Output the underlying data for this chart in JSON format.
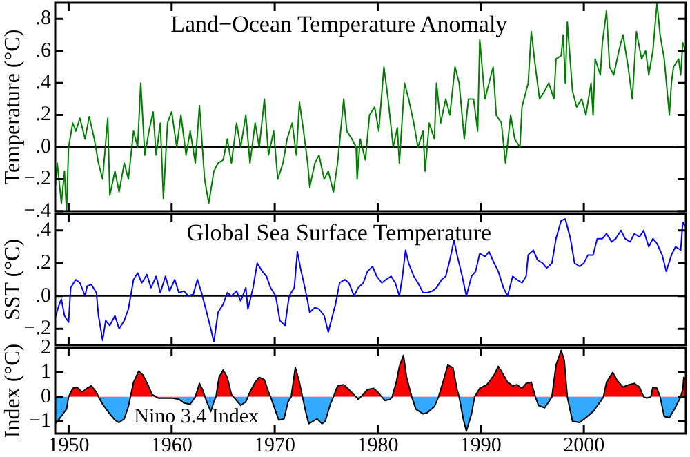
{
  "chart_data": [
    {
      "type": "line",
      "title": "Land−Ocean Temperature Anomaly",
      "ylabel": "Temperature (°C)",
      "color": "#008000",
      "x": [
        1948.7,
        1948.9,
        1949.3,
        1949.6,
        1949.8,
        1950.0,
        1950.4,
        1950.7,
        1951.1,
        1951.6,
        1952.0,
        1952.5,
        1952.9,
        1953.3,
        1953.8,
        1954.0,
        1954.5,
        1954.9,
        1955.4,
        1955.8,
        1956.3,
        1956.7,
        1957.0,
        1957.4,
        1957.8,
        1958.2,
        1958.5,
        1958.9,
        1959.2,
        1959.6,
        1960.0,
        1960.5,
        1960.9,
        1961.4,
        1961.8,
        1962.3,
        1962.7,
        1963.2,
        1963.6,
        1964.1,
        1964.5,
        1965.0,
        1965.4,
        1965.8,
        1966.3,
        1966.7,
        1967.2,
        1967.6,
        1968.1,
        1968.5,
        1969.0,
        1969.4,
        1969.9,
        1970.3,
        1970.8,
        1971.2,
        1971.7,
        1972.1,
        1972.4,
        1972.8,
        1973.2,
        1973.4,
        1973.9,
        1974.3,
        1974.8,
        1975.2,
        1975.7,
        1976.1,
        1976.7,
        1977.0,
        1977.5,
        1977.9,
        1978.0,
        1978.3,
        1978.8,
        1979.2,
        1979.7,
        1980.1,
        1980.6,
        1981.0,
        1981.5,
        1981.9,
        1982.1,
        1982.6,
        1983.0,
        1983.5,
        1983.9,
        1984.4,
        1984.6,
        1985.0,
        1985.5,
        1985.7,
        1986.1,
        1986.6,
        1987.0,
        1987.5,
        1987.9,
        1988.4,
        1988.8,
        1989.3,
        1989.7,
        1989.9,
        1990.4,
        1990.8,
        1991.2,
        1991.5,
        1992.0,
        1992.4,
        1992.9,
        1993.3,
        1993.8,
        1994.0,
        1994.4,
        1994.6,
        1994.9,
        1995.3,
        1995.7,
        1996.2,
        1996.6,
        1997.1,
        1997.3,
        1997.8,
        1998.0,
        1998.2,
        1998.4,
        1998.9,
        1999.3,
        1999.8,
        2000.2,
        2000.7,
        2000.9,
        2001.1,
        2001.6,
        2001.8,
        2002.2,
        2002.5,
        2002.9,
        2003.4,
        2003.8,
        2004.3,
        2004.7,
        2005.1,
        2005.6,
        2006.0,
        2006.3,
        2006.7,
        2007.1,
        2007.4,
        2007.8,
        2008.3,
        2008.5,
        2008.7,
        2009.2,
        2009.4,
        2009.6,
        2009.9
      ],
      "values": [
        -0.25,
        -0.1,
        -0.35,
        -0.15,
        -0.4,
        0.0,
        0.15,
        0.1,
        0.18,
        0.05,
        0.19,
        0.05,
        -0.1,
        -0.2,
        0.18,
        -0.3,
        -0.15,
        -0.28,
        -0.1,
        -0.2,
        0.1,
        0.0,
        0.4,
        -0.05,
        0.1,
        0.22,
        -0.05,
        0.15,
        -0.32,
        0.15,
        0.22,
        0.0,
        0.2,
        -0.05,
        0.1,
        -0.1,
        0.26,
        -0.2,
        -0.35,
        -0.15,
        -0.1,
        -0.08,
        0.05,
        -0.1,
        0.15,
        0.0,
        0.2,
        -0.1,
        0.15,
        0.0,
        0.3,
        -0.05,
        0.1,
        -0.2,
        -0.1,
        0.05,
        0.15,
        -0.05,
        0.28,
        0.1,
        -0.1,
        -0.25,
        -0.1,
        -0.05,
        -0.2,
        -0.15,
        -0.28,
        -0.1,
        0.3,
        0.1,
        0.05,
        0.0,
        -0.2,
        0.05,
        -0.08,
        0.2,
        0.25,
        0.1,
        0.5,
        0.3,
        0.0,
        0.12,
        -0.1,
        0.4,
        0.3,
        0.15,
        0.0,
        0.1,
        -0.15,
        0.15,
        0.05,
        0.4,
        0.15,
        0.3,
        0.2,
        0.5,
        0.4,
        0.05,
        0.3,
        0.3,
        0.1,
        0.67,
        0.3,
        0.4,
        0.5,
        0.2,
        0.15,
        -0.1,
        0.2,
        0.05,
        0.0,
        0.25,
        0.35,
        0.4,
        0.72,
        0.5,
        0.3,
        0.35,
        0.4,
        0.3,
        0.55,
        0.57,
        0.7,
        0.4,
        0.78,
        0.35,
        0.25,
        0.3,
        0.2,
        0.4,
        0.2,
        0.55,
        0.45,
        0.65,
        0.85,
        0.5,
        0.45,
        0.6,
        0.7,
        0.5,
        0.3,
        0.72,
        0.55,
        0.6,
        0.45,
        0.6,
        0.9,
        0.7,
        0.55,
        0.2,
        0.4,
        0.5,
        0.55,
        0.45,
        0.65,
        0.6
      ],
      "xlim": [
        1948.7,
        2009.9
      ],
      "xticks": [
        1950,
        1960,
        1970,
        1980,
        1990,
        2000
      ],
      "ylim": [
        -0.4,
        0.9
      ],
      "yticks": [
        {
          "value": -0.4,
          "label": "−.4"
        },
        {
          "value": -0.2,
          "label": "−.2"
        },
        {
          "value": 0,
          "label": ".0"
        },
        {
          "value": 0.2,
          "label": ".2"
        },
        {
          "value": 0.4,
          "label": ".4"
        },
        {
          "value": 0.6,
          "label": ".6"
        },
        {
          "value": 0.8,
          "label": ".8"
        }
      ],
      "ref_lines": [
        {
          "axis": "y",
          "value": 0,
          "color": "#000000"
        }
      ],
      "tick_labels": "y"
    },
    {
      "type": "line",
      "title": "Global Sea Surface Temperature",
      "ylabel": "SST (°C)",
      "color": "#0000ff",
      "x": [
        1948.7,
        1949.1,
        1949.3,
        1949.6,
        1950.0,
        1950.2,
        1950.7,
        1951.1,
        1951.6,
        1951.8,
        1952.2,
        1952.7,
        1952.9,
        1953.3,
        1953.6,
        1954.0,
        1954.5,
        1954.9,
        1955.4,
        1955.8,
        1956.3,
        1956.7,
        1957.1,
        1957.6,
        1958.0,
        1958.5,
        1958.9,
        1959.4,
        1959.8,
        1960.3,
        1960.7,
        1961.2,
        1961.6,
        1962.1,
        1962.5,
        1962.9,
        1963.4,
        1963.8,
        1964.1,
        1964.5,
        1965.0,
        1965.4,
        1965.8,
        1966.3,
        1966.7,
        1967.2,
        1967.4,
        1967.9,
        1968.3,
        1968.8,
        1969.2,
        1969.6,
        1970.1,
        1970.5,
        1971.0,
        1971.4,
        1971.9,
        1972.2,
        1972.5,
        1973.0,
        1973.4,
        1973.9,
        1974.3,
        1974.8,
        1975.2,
        1975.9,
        1976.3,
        1976.8,
        1977.2,
        1977.7,
        1978.1,
        1978.6,
        1979.0,
        1979.5,
        1979.9,
        1980.4,
        1980.8,
        1981.3,
        1981.7,
        1982.1,
        1982.4,
        1982.7,
        1983.0,
        1983.5,
        1983.9,
        1984.4,
        1984.8,
        1985.3,
        1985.7,
        1986.2,
        1986.6,
        1987.0,
        1987.4,
        1987.7,
        1988.2,
        1988.6,
        1989.1,
        1989.5,
        1989.9,
        1990.4,
        1990.8,
        1991.3,
        1991.7,
        1992.2,
        1992.6,
        1993.1,
        1993.5,
        1994.0,
        1994.4,
        1994.6,
        1995.1,
        1995.5,
        1996.0,
        1996.4,
        1996.9,
        1997.3,
        1997.8,
        1998.2,
        1998.7,
        1999.1,
        1999.6,
        2000.0,
        2000.4,
        2000.9,
        2001.3,
        2001.8,
        2002.2,
        2002.7,
        2003.1,
        2003.6,
        2004.0,
        2004.5,
        2004.9,
        2005.4,
        2005.8,
        2006.3,
        2006.7,
        2007.1,
        2007.6,
        2008.0,
        2008.5,
        2008.9,
        2009.4,
        2009.6,
        2009.9
      ],
      "values": [
        -0.13,
        -0.05,
        -0.02,
        -0.12,
        -0.16,
        0.05,
        0.1,
        0.08,
        0.0,
        0.06,
        0.07,
        0.02,
        -0.12,
        -0.27,
        -0.15,
        -0.18,
        -0.12,
        -0.2,
        -0.15,
        -0.08,
        0.1,
        0.14,
        0.08,
        0.13,
        0.05,
        0.12,
        0.02,
        0.12,
        0.03,
        0.1,
        0.02,
        0.03,
        0.0,
        0.01,
        0.1,
        0.02,
        -0.1,
        -0.2,
        -0.28,
        -0.1,
        -0.05,
        0.02,
        0.0,
        0.03,
        -0.03,
        0.05,
        -0.08,
        0.05,
        0.2,
        0.15,
        0.12,
        0.05,
        0.0,
        -0.15,
        -0.18,
        0.0,
        0.05,
        0.27,
        0.17,
        0.03,
        -0.1,
        -0.07,
        -0.08,
        -0.12,
        -0.22,
        -0.05,
        0.08,
        0.1,
        0.08,
        0.0,
        0.05,
        0.08,
        0.15,
        0.18,
        0.12,
        0.08,
        0.1,
        0.12,
        0.08,
        0.0,
        0.12,
        0.28,
        0.2,
        0.12,
        0.08,
        0.02,
        0.02,
        0.03,
        0.05,
        0.1,
        0.12,
        0.22,
        0.34,
        0.25,
        0.12,
        0.0,
        0.12,
        0.15,
        0.26,
        0.24,
        0.27,
        0.2,
        0.15,
        0.05,
        0.0,
        0.12,
        0.1,
        0.08,
        0.12,
        0.25,
        0.28,
        0.22,
        0.2,
        0.17,
        0.2,
        0.35,
        0.46,
        0.47,
        0.35,
        0.2,
        0.18,
        0.2,
        0.25,
        0.25,
        0.35,
        0.35,
        0.38,
        0.33,
        0.35,
        0.4,
        0.35,
        0.33,
        0.38,
        0.36,
        0.4,
        0.3,
        0.35,
        0.32,
        0.25,
        0.15,
        0.25,
        0.3,
        0.28,
        0.45,
        0.42
      ],
      "xlim": [
        1948.7,
        2009.9
      ],
      "xticks": [
        1950,
        1960,
        1970,
        1980,
        1990,
        2000
      ],
      "ylim": [
        -0.3,
        0.5
      ],
      "yticks": [
        {
          "value": -0.2,
          "label": "−.2"
        },
        {
          "value": 0,
          "label": ".0"
        },
        {
          "value": 0.2,
          "label": ".2"
        },
        {
          "value": 0.4,
          "label": ".4"
        }
      ],
      "ref_lines": [
        {
          "axis": "y",
          "value": 0,
          "color": "#000000"
        }
      ],
      "tick_labels": "y"
    },
    {
      "type": "area",
      "ylabel": "Index (°C)",
      "series": [
        {
          "name": "Nino 3.4 Index",
          "color": "#ff0000",
          "x": [
            1948.7,
            1949.1,
            1949.8,
            1950.0,
            1950.4,
            1950.8,
            1951.3,
            1951.8,
            1952.2,
            1952.7,
            1952.9,
            1953.3,
            1954.0,
            1954.5,
            1954.9,
            1955.4,
            1955.8,
            1956.0,
            1956.3,
            1956.8,
            1957.2,
            1957.7,
            1958.1,
            1958.7,
            1959.4,
            1960.0,
            1960.7,
            1961.2,
            1961.8,
            1962.3,
            1962.7,
            1963.0,
            1963.4,
            1963.8,
            1964.1,
            1964.3,
            1964.6,
            1965.0,
            1965.4,
            1965.8,
            1966.2,
            1966.7,
            1967.2,
            1967.6,
            1968.1,
            1968.5,
            1969.0,
            1969.4,
            1969.6,
            1970.1,
            1970.4,
            1970.9,
            1971.3,
            1971.6,
            1972.0,
            1972.4,
            1972.7,
            1973.0,
            1973.3,
            1973.7,
            1974.1,
            1974.6,
            1974.9,
            1975.4,
            1975.7,
            1976.1,
            1976.7,
            1977.2,
            1977.9,
            1978.1,
            1978.6,
            1979.0,
            1979.6,
            1980.0,
            1980.4,
            1980.7,
            1981.2,
            1981.4,
            1981.8,
            1982.1,
            1982.5,
            1982.8,
            1983.3,
            1983.7,
            1984.4,
            1984.8,
            1985.5,
            1985.9,
            1986.4,
            1986.8,
            1987.3,
            1987.7,
            1987.9,
            1988.3,
            1988.6,
            1989.1,
            1989.4,
            1989.9,
            1990.6,
            1991.3,
            1991.7,
            1992.2,
            1992.6,
            1993.1,
            1993.5,
            1994.0,
            1994.4,
            1994.9,
            1995.3,
            1995.6,
            1996.2,
            1996.6,
            1996.9,
            1997.3,
            1997.8,
            1998.1,
            1998.4,
            1998.9,
            1999.6,
            2000.2,
            2000.9,
            2001.6,
            2001.9,
            2002.2,
            2002.8,
            2003.2,
            2003.8,
            2004.4,
            2004.9,
            2005.4,
            2005.8,
            2006.1,
            2006.5,
            2006.7,
            2007.1,
            2007.4,
            2007.8,
            2008.3,
            2008.8,
            2009.4,
            2009.6,
            2009.7,
            2009.9
          ],
          "values": [
            -1.1,
            -0.9,
            -0.5,
            0.0,
            0.35,
            0.4,
            0.2,
            0.35,
            0.45,
            0.2,
            0.0,
            -0.3,
            -0.7,
            -0.95,
            -1.05,
            -0.9,
            -0.4,
            0.0,
            0.6,
            1.05,
            0.9,
            0.5,
            0.1,
            -0.05,
            -0.05,
            -0.05,
            -0.1,
            -0.25,
            -0.3,
            0.0,
            0.55,
            0.3,
            -0.2,
            -0.6,
            -0.2,
            0.0,
            0.8,
            1.1,
            0.8,
            0.1,
            -0.1,
            -0.35,
            -0.2,
            0.2,
            0.6,
            0.8,
            0.7,
            0.2,
            0.0,
            -0.6,
            -0.95,
            -0.9,
            -0.2,
            0.0,
            1.2,
            0.6,
            0.0,
            -0.6,
            -1.1,
            -1.0,
            -0.9,
            -1.1,
            -1.0,
            -0.3,
            0.0,
            0.45,
            0.5,
            0.3,
            0.0,
            -0.1,
            0.1,
            0.3,
            0.35,
            0.2,
            0.0,
            -0.15,
            -0.1,
            0.0,
            0.6,
            1.25,
            1.7,
            0.8,
            0.0,
            -0.5,
            -0.7,
            -0.65,
            -0.4,
            0.0,
            0.7,
            1.3,
            1.2,
            0.3,
            0.0,
            -0.9,
            -1.4,
            -0.7,
            0.0,
            0.35,
            0.5,
            0.9,
            1.25,
            0.9,
            0.6,
            0.45,
            0.5,
            0.35,
            0.55,
            0.6,
            0.0,
            -0.35,
            -0.45,
            -0.2,
            0.0,
            1.3,
            1.9,
            1.5,
            0.0,
            -1.0,
            -1.05,
            -0.85,
            -0.6,
            -0.2,
            0.0,
            0.6,
            1.0,
            0.7,
            0.4,
            0.5,
            0.55,
            0.4,
            0.0,
            -0.05,
            0.0,
            0.4,
            0.35,
            0.0,
            -0.8,
            -0.85,
            -0.5,
            0.0,
            0.3,
            0.8,
            0.7
          ]
        }
      ],
      "xlim": [
        1948.7,
        2009.9
      ],
      "xticks": [
        1950,
        1960,
        1970,
        1980,
        1990,
        2000
      ],
      "ylim": [
        -1.5,
        2
      ],
      "yticks": [
        {
          "value": -1,
          "label": "−1"
        },
        0,
        1,
        2
      ]
    }
  ]
}
